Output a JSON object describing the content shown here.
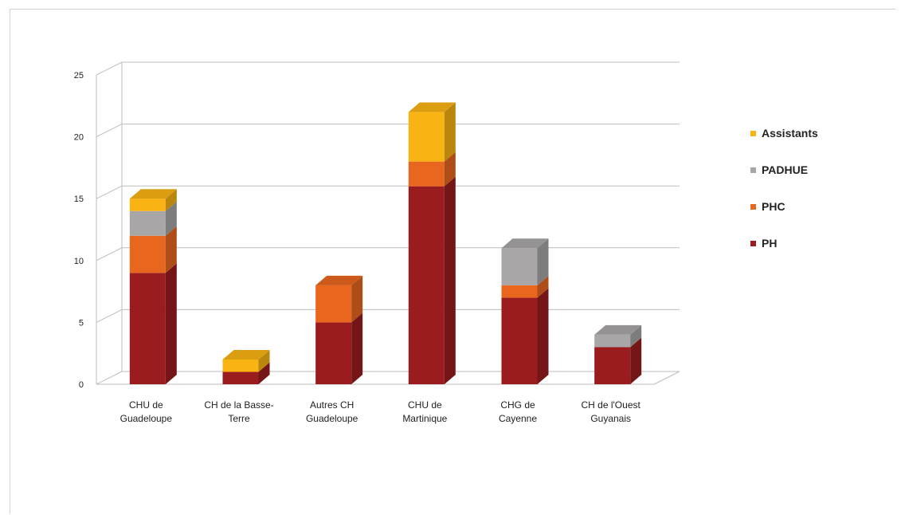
{
  "chart_data": {
    "type": "bar",
    "stacked": true,
    "three_d": true,
    "categories": [
      [
        "CHU de",
        "Guadeloupe"
      ],
      [
        "CH de la Basse-",
        "Terre"
      ],
      [
        "Autres CH",
        "Guadeloupe"
      ],
      [
        "CHU de",
        "Martinique"
      ],
      [
        "CHG de",
        "Cayenne"
      ],
      [
        "CH de l'Ouest",
        "Guyanais"
      ]
    ],
    "series": [
      {
        "name": "PH",
        "values": [
          9,
          1,
          5,
          16,
          7,
          3
        ],
        "color": "#9b1c1f"
      },
      {
        "name": "PHC",
        "values": [
          3,
          0,
          3,
          2,
          1,
          0
        ],
        "color": "#e8661e"
      },
      {
        "name": "PADHUE",
        "values": [
          2,
          0,
          0,
          0,
          3,
          1
        ],
        "color": "#a8a6a6"
      },
      {
        "name": "Assistants",
        "values": [
          1,
          1,
          0,
          4,
          0,
          0
        ],
        "color": "#f9b313"
      }
    ],
    "legend_order": [
      "Assistants",
      "PADHUE",
      "PHC",
      "PH"
    ],
    "legend_position": "right",
    "y_ticks": [
      "0",
      "5",
      "10",
      "15",
      "20",
      "25"
    ],
    "ylim": [
      0,
      25
    ],
    "grid": true,
    "title": "",
    "xlabel": "",
    "ylabel": ""
  }
}
